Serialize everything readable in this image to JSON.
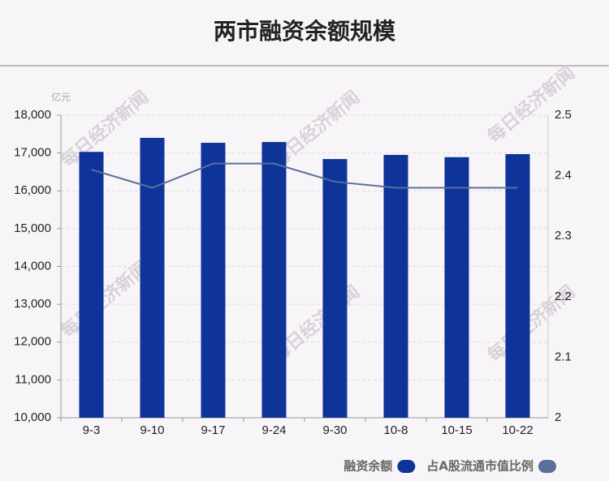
{
  "chart_data": {
    "type": "bar-line",
    "title": "两市融资余额规模",
    "y_unit": "亿元",
    "watermark": "每日经济新闻",
    "categories": [
      "9-3",
      "9-10",
      "9-17",
      "9-24",
      "9-30",
      "10-8",
      "10-15",
      "10-22"
    ],
    "series": [
      {
        "name": "融资余额",
        "type": "bar",
        "color": "#0e3399",
        "values": [
          17030,
          17400,
          17270,
          17290,
          16840,
          16950,
          16890,
          16970
        ]
      },
      {
        "name": "占A股流通市值比例",
        "type": "line",
        "axis": "y2",
        "color": "#5b6f9c",
        "values": [
          2.41,
          2.38,
          2.42,
          2.42,
          2.39,
          2.38,
          2.38,
          2.38
        ]
      }
    ],
    "ylim": [
      10000,
      18000
    ],
    "yticks": [
      {
        "value": 10000,
        "label": "10,000"
      },
      {
        "value": 11000,
        "label": "11,000"
      },
      {
        "value": 12000,
        "label": "12,000"
      },
      {
        "value": 13000,
        "label": "13,000"
      },
      {
        "value": 14000,
        "label": "14,000"
      },
      {
        "value": 15000,
        "label": "15,000"
      },
      {
        "value": 16000,
        "label": "16,000"
      },
      {
        "value": 17000,
        "label": "17,000"
      },
      {
        "value": 18000,
        "label": "18,000"
      }
    ],
    "y2lim": [
      2,
      2.5
    ],
    "y2ticks": [
      2,
      2.1,
      2.2,
      2.3,
      2.4,
      2.5
    ],
    "grid": true
  }
}
